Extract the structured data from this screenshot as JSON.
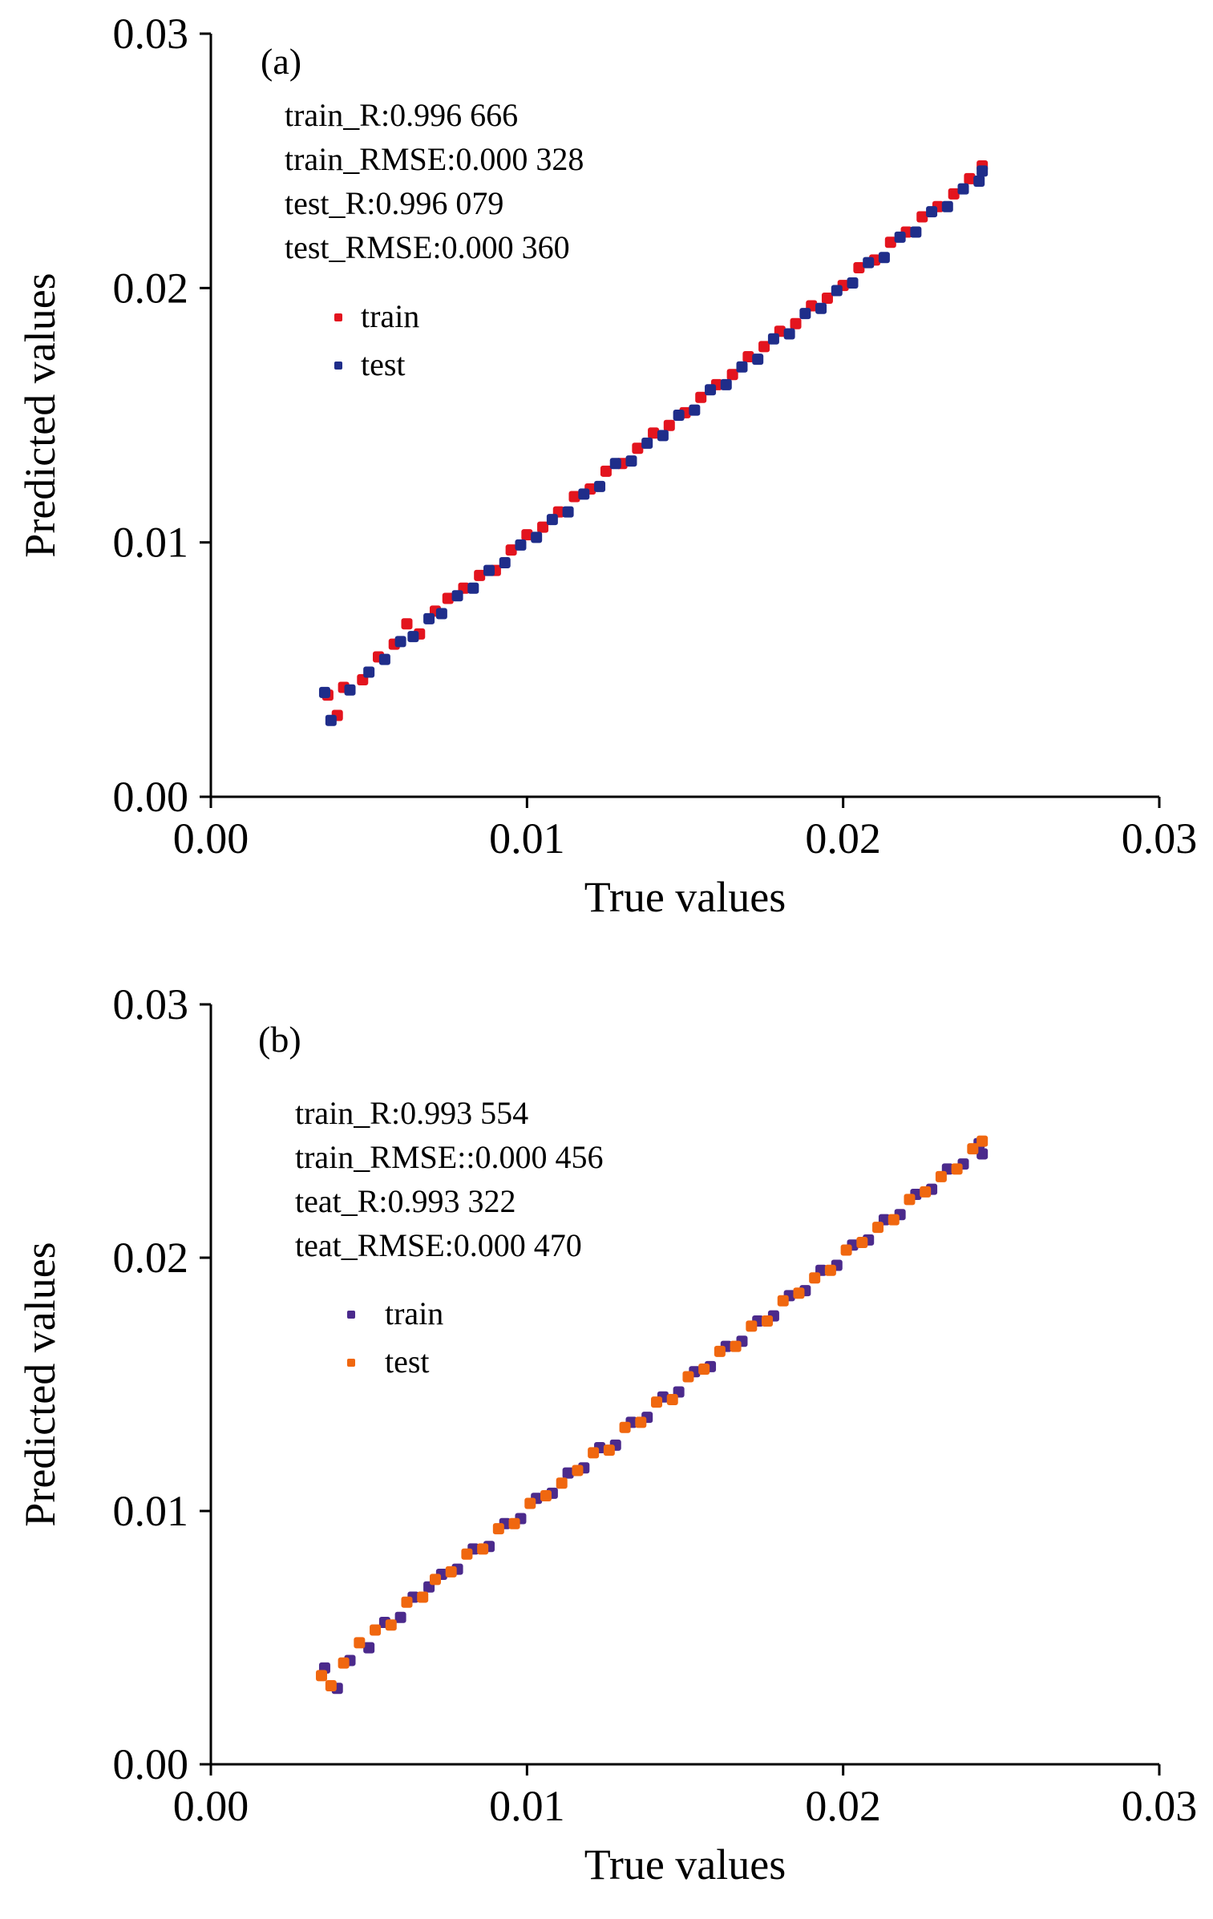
{
  "chart_data": [
    {
      "type": "scatter",
      "panel_label": "(a)",
      "xlabel": "True values",
      "ylabel": "Predicted values",
      "xlim": [
        0,
        0.03
      ],
      "ylim": [
        0,
        0.03
      ],
      "xticks": [
        "0.00",
        "0.01",
        "0.02",
        "0.03"
      ],
      "yticks": [
        "0.00",
        "0.01",
        "0.02",
        "0.03"
      ],
      "grid": false,
      "legend_placement": "top-left",
      "annotations": [
        "train_R:0.996 666",
        "train_RMSE:0.000 328",
        "test_R:0.996 079",
        "test_RMSE:0.000 360"
      ],
      "series": [
        {
          "name": "train",
          "color": "#e3141e",
          "points": [
            [
              0.0037,
              0.004
            ],
            [
              0.004,
              0.0032
            ],
            [
              0.0042,
              0.0043
            ],
            [
              0.0048,
              0.0046
            ],
            [
              0.0053,
              0.0055
            ],
            [
              0.0058,
              0.006
            ],
            [
              0.0062,
              0.0068
            ],
            [
              0.0066,
              0.0064
            ],
            [
              0.0071,
              0.0073
            ],
            [
              0.0075,
              0.0078
            ],
            [
              0.008,
              0.0082
            ],
            [
              0.0085,
              0.0087
            ],
            [
              0.009,
              0.0089
            ],
            [
              0.0095,
              0.0097
            ],
            [
              0.01,
              0.0103
            ],
            [
              0.0105,
              0.0106
            ],
            [
              0.011,
              0.0112
            ],
            [
              0.0115,
              0.0118
            ],
            [
              0.012,
              0.0121
            ],
            [
              0.0125,
              0.0128
            ],
            [
              0.013,
              0.0131
            ],
            [
              0.0135,
              0.0137
            ],
            [
              0.014,
              0.0143
            ],
            [
              0.0145,
              0.0146
            ],
            [
              0.015,
              0.0151
            ],
            [
              0.0155,
              0.0157
            ],
            [
              0.016,
              0.0162
            ],
            [
              0.0165,
              0.0166
            ],
            [
              0.017,
              0.0173
            ],
            [
              0.0175,
              0.0177
            ],
            [
              0.018,
              0.0183
            ],
            [
              0.0185,
              0.0186
            ],
            [
              0.019,
              0.0193
            ],
            [
              0.0195,
              0.0196
            ],
            [
              0.02,
              0.0201
            ],
            [
              0.0205,
              0.0208
            ],
            [
              0.021,
              0.0211
            ],
            [
              0.0215,
              0.0218
            ],
            [
              0.022,
              0.0222
            ],
            [
              0.0225,
              0.0228
            ],
            [
              0.023,
              0.0232
            ],
            [
              0.0235,
              0.0237
            ],
            [
              0.024,
              0.0243
            ],
            [
              0.0244,
              0.0248
            ]
          ]
        },
        {
          "name": "test",
          "color": "#1f2d8a",
          "points": [
            [
              0.0036,
              0.0041
            ],
            [
              0.0038,
              0.003
            ],
            [
              0.0044,
              0.0042
            ],
            [
              0.005,
              0.0049
            ],
            [
              0.0055,
              0.0054
            ],
            [
              0.006,
              0.0061
            ],
            [
              0.0064,
              0.0063
            ],
            [
              0.0069,
              0.007
            ],
            [
              0.0073,
              0.0072
            ],
            [
              0.0078,
              0.0079
            ],
            [
              0.0083,
              0.0082
            ],
            [
              0.0088,
              0.0089
            ],
            [
              0.0093,
              0.0092
            ],
            [
              0.0098,
              0.0099
            ],
            [
              0.0103,
              0.0102
            ],
            [
              0.0108,
              0.0109
            ],
            [
              0.0113,
              0.0112
            ],
            [
              0.0118,
              0.0119
            ],
            [
              0.0123,
              0.0122
            ],
            [
              0.0128,
              0.0131
            ],
            [
              0.0133,
              0.0132
            ],
            [
              0.0138,
              0.0139
            ],
            [
              0.0143,
              0.0142
            ],
            [
              0.0148,
              0.015
            ],
            [
              0.0153,
              0.0152
            ],
            [
              0.0158,
              0.016
            ],
            [
              0.0163,
              0.0162
            ],
            [
              0.0168,
              0.0169
            ],
            [
              0.0173,
              0.0172
            ],
            [
              0.0178,
              0.018
            ],
            [
              0.0183,
              0.0182
            ],
            [
              0.0188,
              0.019
            ],
            [
              0.0193,
              0.0192
            ],
            [
              0.0198,
              0.0199
            ],
            [
              0.0203,
              0.0202
            ],
            [
              0.0208,
              0.021
            ],
            [
              0.0213,
              0.0212
            ],
            [
              0.0218,
              0.022
            ],
            [
              0.0223,
              0.0222
            ],
            [
              0.0228,
              0.023
            ],
            [
              0.0233,
              0.0232
            ],
            [
              0.0238,
              0.0239
            ],
            [
              0.0243,
              0.0242
            ],
            [
              0.0244,
              0.0246
            ]
          ]
        }
      ]
    },
    {
      "type": "scatter",
      "panel_label": "(b)",
      "xlabel": "True values",
      "ylabel": "Predicted values",
      "xlim": [
        0,
        0.03
      ],
      "ylim": [
        0,
        0.03
      ],
      "xticks": [
        "0.00",
        "0.01",
        "0.02",
        "0.03"
      ],
      "yticks": [
        "0.00",
        "0.01",
        "0.02",
        "0.03"
      ],
      "grid": false,
      "legend_placement": "top-left",
      "annotations": [
        "train_R:0.993 554",
        "train_RMSE::0.000 456",
        "teat_R:0.993 322",
        "teat_RMSE:0.000 470"
      ],
      "series": [
        {
          "name": "train",
          "color": "#4b2a8c",
          "points": [
            [
              0.0036,
              0.0038
            ],
            [
              0.004,
              0.003
            ],
            [
              0.0044,
              0.0041
            ],
            [
              0.005,
              0.0046
            ],
            [
              0.0055,
              0.0056
            ],
            [
              0.006,
              0.0058
            ],
            [
              0.0064,
              0.0066
            ],
            [
              0.0069,
              0.007
            ],
            [
              0.0073,
              0.0075
            ],
            [
              0.0078,
              0.0077
            ],
            [
              0.0083,
              0.0085
            ],
            [
              0.0088,
              0.0086
            ],
            [
              0.0093,
              0.0095
            ],
            [
              0.0098,
              0.0097
            ],
            [
              0.0103,
              0.0105
            ],
            [
              0.0108,
              0.0107
            ],
            [
              0.0113,
              0.0115
            ],
            [
              0.0118,
              0.0117
            ],
            [
              0.0123,
              0.0125
            ],
            [
              0.0128,
              0.0126
            ],
            [
              0.0133,
              0.0135
            ],
            [
              0.0138,
              0.0137
            ],
            [
              0.0143,
              0.0145
            ],
            [
              0.0148,
              0.0147
            ],
            [
              0.0153,
              0.0155
            ],
            [
              0.0158,
              0.0157
            ],
            [
              0.0163,
              0.0165
            ],
            [
              0.0168,
              0.0167
            ],
            [
              0.0173,
              0.0175
            ],
            [
              0.0178,
              0.0177
            ],
            [
              0.0183,
              0.0185
            ],
            [
              0.0188,
              0.0187
            ],
            [
              0.0193,
              0.0195
            ],
            [
              0.0198,
              0.0197
            ],
            [
              0.0203,
              0.0205
            ],
            [
              0.0208,
              0.0207
            ],
            [
              0.0213,
              0.0215
            ],
            [
              0.0218,
              0.0217
            ],
            [
              0.0223,
              0.0225
            ],
            [
              0.0228,
              0.0227
            ],
            [
              0.0233,
              0.0235
            ],
            [
              0.0238,
              0.0237
            ],
            [
              0.0243,
              0.0245
            ],
            [
              0.0244,
              0.0241
            ]
          ]
        },
        {
          "name": "test",
          "color": "#f0670f",
          "points": [
            [
              0.0035,
              0.0035
            ],
            [
              0.0038,
              0.0031
            ],
            [
              0.0042,
              0.004
            ],
            [
              0.0047,
              0.0048
            ],
            [
              0.0052,
              0.0053
            ],
            [
              0.0057,
              0.0055
            ],
            [
              0.0062,
              0.0064
            ],
            [
              0.0067,
              0.0066
            ],
            [
              0.0071,
              0.0073
            ],
            [
              0.0076,
              0.0076
            ],
            [
              0.0081,
              0.0083
            ],
            [
              0.0086,
              0.0085
            ],
            [
              0.0091,
              0.0093
            ],
            [
              0.0096,
              0.0095
            ],
            [
              0.0101,
              0.0103
            ],
            [
              0.0106,
              0.0106
            ],
            [
              0.0111,
              0.0111
            ],
            [
              0.0116,
              0.0116
            ],
            [
              0.0121,
              0.0123
            ],
            [
              0.0126,
              0.0124
            ],
            [
              0.0131,
              0.0133
            ],
            [
              0.0136,
              0.0135
            ],
            [
              0.0141,
              0.0143
            ],
            [
              0.0146,
              0.0144
            ],
            [
              0.0151,
              0.0153
            ],
            [
              0.0156,
              0.0156
            ],
            [
              0.0161,
              0.0163
            ],
            [
              0.0166,
              0.0165
            ],
            [
              0.0171,
              0.0173
            ],
            [
              0.0176,
              0.0175
            ],
            [
              0.0181,
              0.0183
            ],
            [
              0.0186,
              0.0186
            ],
            [
              0.0191,
              0.0192
            ],
            [
              0.0196,
              0.0195
            ],
            [
              0.0201,
              0.0203
            ],
            [
              0.0206,
              0.0206
            ],
            [
              0.0211,
              0.0212
            ],
            [
              0.0216,
              0.0215
            ],
            [
              0.0221,
              0.0223
            ],
            [
              0.0226,
              0.0226
            ],
            [
              0.0231,
              0.0232
            ],
            [
              0.0236,
              0.0235
            ],
            [
              0.0241,
              0.0243
            ],
            [
              0.0244,
              0.0246
            ]
          ]
        }
      ]
    }
  ]
}
